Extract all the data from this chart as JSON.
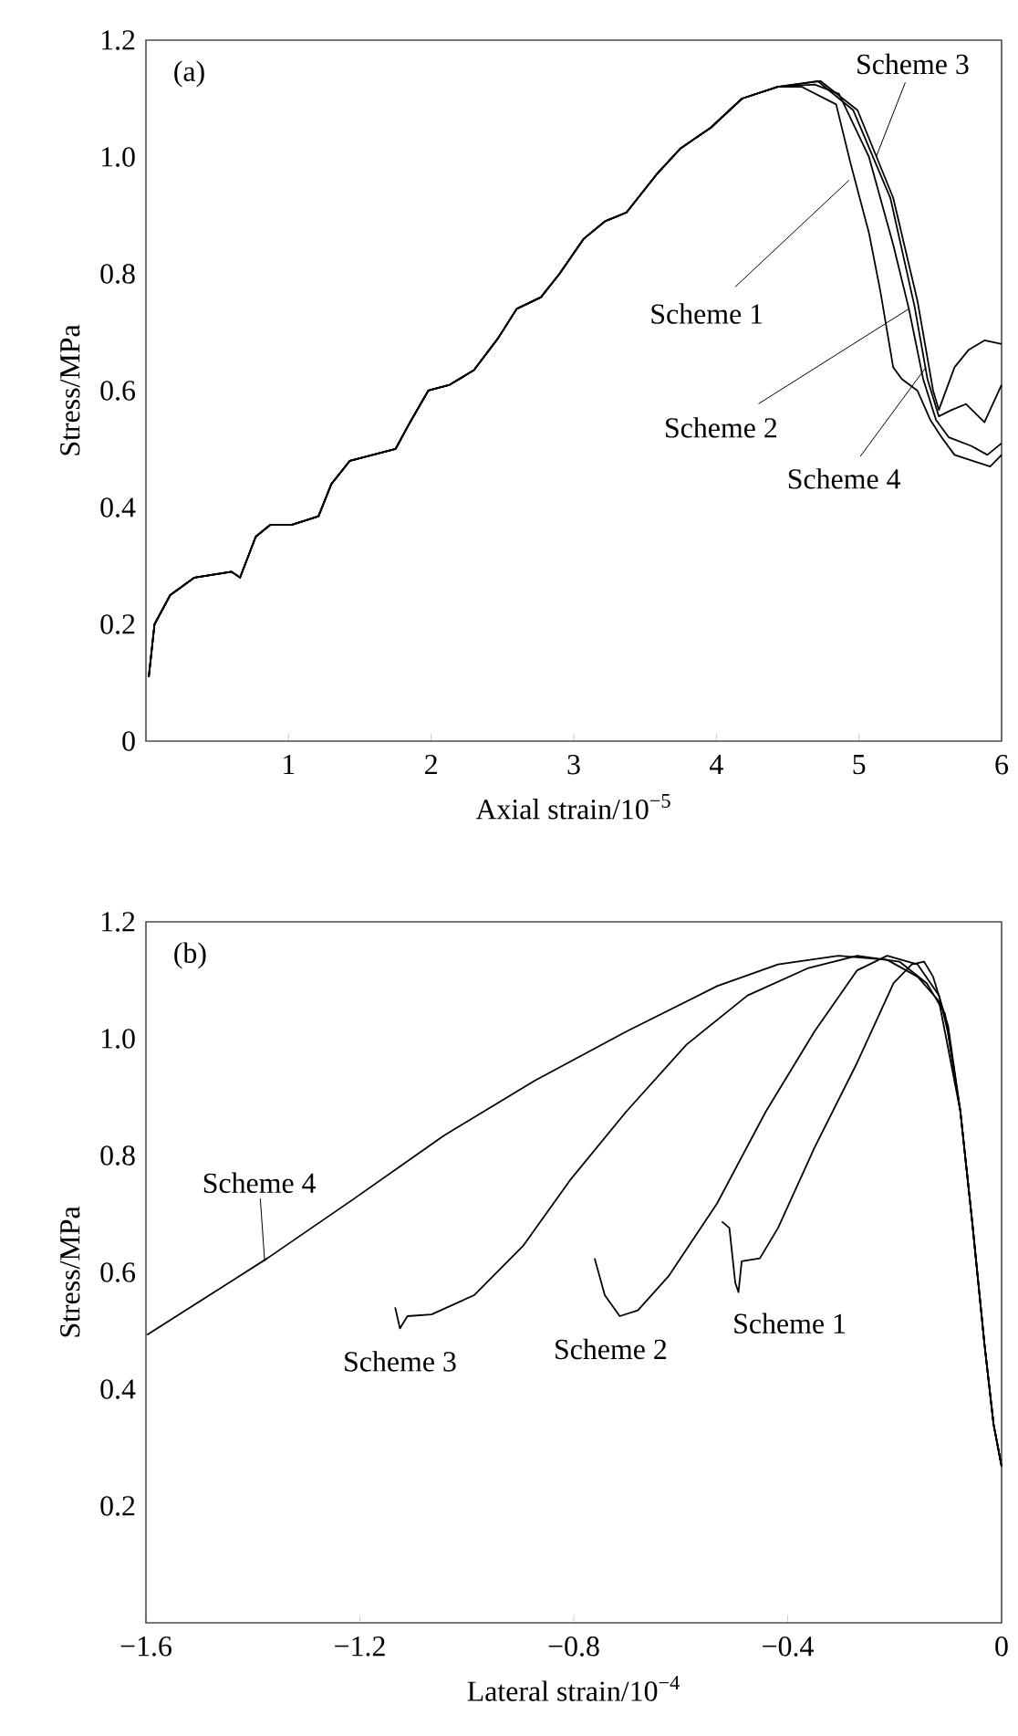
{
  "chart_data": [
    {
      "type": "line",
      "title": "(a)",
      "xlabel": "Axial strain/10$^{−5}$",
      "ylabel": "Stress/MPa",
      "xlim": [
        0,
        6
      ],
      "ylim": [
        0,
        1.2
      ],
      "xticks": [
        {
          "value": 0,
          "label": null
        },
        1,
        2,
        3,
        4,
        5,
        6
      ],
      "yticks": [
        0,
        0.2,
        0.4,
        0.6,
        0.8,
        {
          "value": 1,
          "label": "1.0"
        },
        1.2
      ],
      "series": [
        {
          "color": "#000000",
          "x": [
            0.02,
            0.06,
            0.17,
            0.34,
            0.6,
            0.66,
            0.77,
            0.87,
            1.02,
            1.21,
            1.3,
            1.43,
            1.75,
            1.85,
            1.98,
            2.13,
            2.3,
            2.47,
            2.6,
            2.77,
            2.9,
            3.07,
            3.22,
            3.37,
            3.58,
            3.75,
            3.96,
            4.18,
            4.43,
            4.6,
            4.84,
            4.94,
            5.07,
            5.15,
            5.24,
            5.3,
            5.41,
            5.5,
            5.58,
            5.67,
            5.92,
            6.0
          ],
          "values": [
            0.11,
            0.2,
            0.25,
            0.28,
            0.29,
            0.28,
            0.35,
            0.37,
            0.37,
            0.385,
            0.44,
            0.48,
            0.5,
            0.545,
            0.6,
            0.61,
            0.635,
            0.69,
            0.74,
            0.76,
            0.8,
            0.86,
            0.89,
            0.905,
            0.97,
            1.015,
            1.05,
            1.1,
            1.12,
            1.12,
            1.09,
            0.99,
            0.87,
            0.77,
            0.64,
            0.62,
            0.6,
            0.55,
            0.52,
            0.49,
            0.47,
            0.49
          ]
        },
        {
          "color": "#000000",
          "x": [
            0.02,
            0.06,
            0.17,
            0.34,
            0.6,
            0.66,
            0.77,
            0.87,
            1.02,
            1.21,
            1.3,
            1.43,
            1.75,
            1.85,
            1.98,
            2.13,
            2.3,
            2.47,
            2.6,
            2.77,
            2.9,
            3.07,
            3.22,
            3.37,
            3.58,
            3.75,
            3.96,
            4.18,
            4.43,
            4.69,
            4.86,
            5.07,
            5.24,
            5.35,
            5.45,
            5.54,
            5.63,
            5.79,
            5.9,
            6.0
          ],
          "values": [
            0.11,
            0.2,
            0.25,
            0.28,
            0.29,
            0.28,
            0.35,
            0.37,
            0.37,
            0.385,
            0.44,
            0.48,
            0.5,
            0.545,
            0.6,
            0.61,
            0.635,
            0.69,
            0.74,
            0.76,
            0.8,
            0.86,
            0.89,
            0.905,
            0.97,
            1.015,
            1.05,
            1.1,
            1.12,
            1.124,
            1.108,
            1.0,
            0.85,
            0.74,
            0.62,
            0.55,
            0.52,
            0.505,
            0.49,
            0.51
          ]
        },
        {
          "color": "#000000",
          "x": [
            0.02,
            0.06,
            0.17,
            0.34,
            0.6,
            0.66,
            0.77,
            0.87,
            1.02,
            1.21,
            1.3,
            1.43,
            1.75,
            1.85,
            1.98,
            2.13,
            2.3,
            2.47,
            2.6,
            2.77,
            2.9,
            3.07,
            3.22,
            3.37,
            3.58,
            3.75,
            3.96,
            4.18,
            4.43,
            4.73,
            4.99,
            5.24,
            5.41,
            5.52,
            5.56,
            5.67,
            5.77,
            5.88,
            6.0
          ],
          "values": [
            0.11,
            0.2,
            0.25,
            0.28,
            0.29,
            0.28,
            0.35,
            0.37,
            0.37,
            0.385,
            0.44,
            0.48,
            0.5,
            0.545,
            0.6,
            0.61,
            0.635,
            0.69,
            0.74,
            0.76,
            0.8,
            0.86,
            0.89,
            0.905,
            0.97,
            1.015,
            1.05,
            1.1,
            1.12,
            1.13,
            1.08,
            0.93,
            0.754,
            0.6,
            0.567,
            0.64,
            0.67,
            0.686,
            0.68
          ]
        },
        {
          "color": "#000000",
          "x": [
            0.02,
            0.06,
            0.17,
            0.34,
            0.6,
            0.66,
            0.77,
            0.87,
            1.02,
            1.21,
            1.3,
            1.43,
            1.75,
            1.85,
            1.98,
            2.13,
            2.3,
            2.47,
            2.6,
            2.77,
            2.9,
            3.07,
            3.22,
            3.37,
            3.58,
            3.75,
            3.96,
            4.18,
            4.43,
            4.71,
            4.96,
            5.22,
            5.39,
            5.48,
            5.56,
            5.65,
            5.75,
            5.88,
            6.0
          ],
          "values": [
            0.11,
            0.2,
            0.25,
            0.28,
            0.29,
            0.28,
            0.35,
            0.37,
            0.37,
            0.385,
            0.44,
            0.48,
            0.5,
            0.545,
            0.6,
            0.61,
            0.635,
            0.69,
            0.74,
            0.76,
            0.8,
            0.86,
            0.89,
            0.905,
            0.97,
            1.015,
            1.05,
            1.1,
            1.12,
            1.13,
            1.08,
            0.93,
            0.744,
            0.62,
            0.556,
            0.567,
            0.577,
            0.546,
            0.61
          ]
        }
      ],
      "annotations": [
        {
          "text": "Scheme 3",
          "x": 5.12,
          "y": 1.0
        },
        {
          "text": "Scheme 1",
          "x": 4.93,
          "y": 0.96
        },
        {
          "text": "Scheme 2",
          "x": 5.35,
          "y": 0.74
        },
        {
          "text": "Scheme 4",
          "x": 5.47,
          "y": 0.64
        }
      ]
    },
    {
      "type": "line",
      "title": "(b)",
      "xlabel": "Lateral strain/10$^{−4}$",
      "ylabel": "Stress/MPa",
      "xlim": [
        -1.6,
        0
      ],
      "ylim": [
        0,
        1.2
      ],
      "xticks": [
        {
          "value": -1.6,
          "label": "−1.6"
        },
        {
          "value": -1.2,
          "label": "−1.2"
        },
        {
          "value": -0.8,
          "label": "−0.8"
        },
        {
          "value": -0.4,
          "label": "−0.4"
        },
        0
      ],
      "yticks": [
        0.2,
        0.4,
        0.6,
        0.8,
        {
          "value": 1,
          "label": "1.0"
        },
        1.2
      ],
      "series": [
        {
          "color": "#000000",
          "x": [
            -0.523,
            -0.509,
            -0.498,
            -0.492,
            -0.486,
            -0.452,
            -0.418,
            -0.35,
            -0.27,
            -0.202,
            -0.168,
            -0.145,
            -0.128,
            -0.1,
            -0.077,
            -0.055,
            -0.032,
            -0.015,
            0
          ],
          "values": [
            0.687,
            0.676,
            0.582,
            0.566,
            0.619,
            0.624,
            0.676,
            0.813,
            0.959,
            1.095,
            1.127,
            1.132,
            1.106,
            1.022,
            0.875,
            0.687,
            0.477,
            0.34,
            0.268
          ]
        },
        {
          "color": "#000000",
          "x": [
            -0.761,
            -0.742,
            -0.714,
            -0.68,
            -0.623,
            -0.532,
            -0.441,
            -0.35,
            -0.27,
            -0.214,
            -0.157,
            -0.117,
            -0.1,
            -0.077,
            -0.055,
            -0.032,
            -0.015,
            0
          ],
          "values": [
            0.624,
            0.561,
            0.525,
            0.535,
            0.593,
            0.718,
            0.875,
            1.012,
            1.117,
            1.142,
            1.127,
            1.074,
            1.01,
            0.875,
            0.687,
            0.477,
            0.34,
            0.268
          ]
        },
        {
          "color": "#000000",
          "x": [
            -1.134,
            -1.125,
            -1.111,
            -1.066,
            -0.986,
            -0.895,
            -0.805,
            -0.702,
            -0.589,
            -0.475,
            -0.361,
            -0.27,
            -0.191,
            -0.14,
            -0.106,
            -0.077,
            -0.055,
            -0.032,
            -0.015,
            0
          ],
          "values": [
            0.54,
            0.504,
            0.525,
            0.528,
            0.561,
            0.645,
            0.76,
            0.875,
            0.99,
            1.074,
            1.121,
            1.142,
            1.132,
            1.095,
            1.043,
            0.875,
            0.687,
            0.477,
            0.34,
            0.268
          ]
        },
        {
          "color": "#000000",
          "x": [
            -1.598,
            -1.498,
            -1.373,
            -1.214,
            -1.043,
            -0.873,
            -0.702,
            -0.532,
            -0.418,
            -0.305,
            -0.214,
            -0.157,
            -0.117,
            -0.077,
            -0.055,
            -0.032,
            -0.015,
            0
          ],
          "values": [
            0.493,
            0.551,
            0.624,
            0.724,
            0.834,
            0.928,
            1.012,
            1.09,
            1.127,
            1.142,
            1.135,
            1.106,
            1.064,
            0.875,
            0.687,
            0.477,
            0.34,
            0.268
          ]
        }
      ],
      "annotations": [
        {
          "text": "Scheme 4",
          "x": -1.378,
          "y": 0.619
        },
        {
          "text": "Scheme 3",
          "x": -1.125,
          "y": 0.504
        },
        {
          "text": "Scheme 2",
          "x": -0.714,
          "y": 0.525
        },
        {
          "text": "Scheme 1",
          "x": -0.492,
          "y": 0.566
        }
      ]
    }
  ]
}
